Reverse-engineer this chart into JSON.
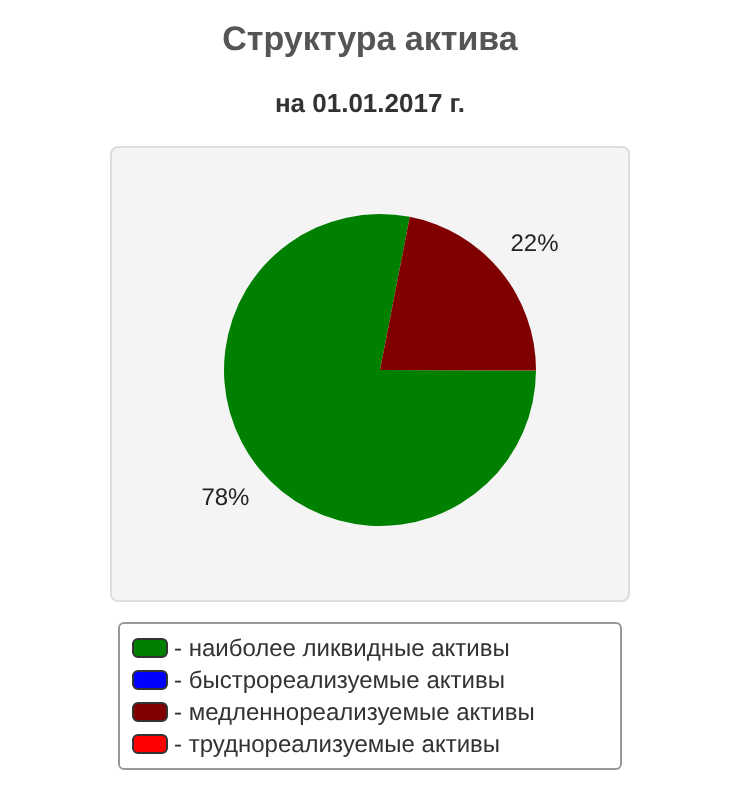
{
  "chart_data": {
    "type": "pie",
    "title": "Структура актива",
    "subtitle": "на 01.01.2017 г.",
    "categories": [
      "- наиболее ликвидные активы",
      "- быстрореализуемые активы",
      "- медленнореализуемые активы",
      "- труднореализуемые активы"
    ],
    "values": [
      78,
      0,
      22,
      0
    ],
    "value_labels": [
      "78%",
      null,
      "22%",
      null
    ],
    "colors": [
      "#008000",
      "#0000ff",
      "#800000",
      "#ff0000"
    ],
    "legend": "bottom"
  }
}
